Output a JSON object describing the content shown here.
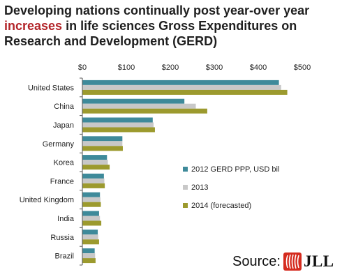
{
  "title": {
    "part1": "Developing nations continually post year-over year ",
    "highlight": "increases",
    "part2": " in life sciences ",
    "bold": "Gross Expenditures on Research and Development (GERD)"
  },
  "source": {
    "label": "Source:",
    "brand": "JLL"
  },
  "colors": {
    "s2012": "#3e8a9a",
    "s2013": "#c8c8c8",
    "s2014": "#9c9a2e",
    "highlight": "#b3252a",
    "logo_red": "#d52b1e"
  },
  "chart_data": {
    "type": "bar",
    "orientation": "horizontal",
    "categories": [
      "United States",
      "China",
      "Japan",
      "Germany",
      "Korea",
      "France",
      "United Kingdom",
      "India",
      "Russia",
      "Brazil"
    ],
    "series": [
      {
        "name": "2012 GERD PPP, USD bil",
        "values": [
          447,
          232,
          160,
          91,
          56,
          49,
          40,
          38,
          35,
          28
        ]
      },
      {
        "name": "2013",
        "values": [
          452,
          258,
          162,
          91,
          58,
          50,
          41,
          40,
          36,
          29
        ]
      },
      {
        "name": "2014 (forecasted)",
        "values": [
          466,
          284,
          165,
          92,
          62,
          51,
          42,
          43,
          38,
          30
        ]
      }
    ],
    "xlim": [
      0,
      500
    ],
    "xticks": [
      0,
      100,
      200,
      300,
      400,
      500
    ],
    "xtick_labels": [
      "$0",
      "$100",
      "$200",
      "$300",
      "$400",
      "$500"
    ],
    "grid": false,
    "legend_position": "right-middle",
    "xlabel": "",
    "ylabel": ""
  }
}
